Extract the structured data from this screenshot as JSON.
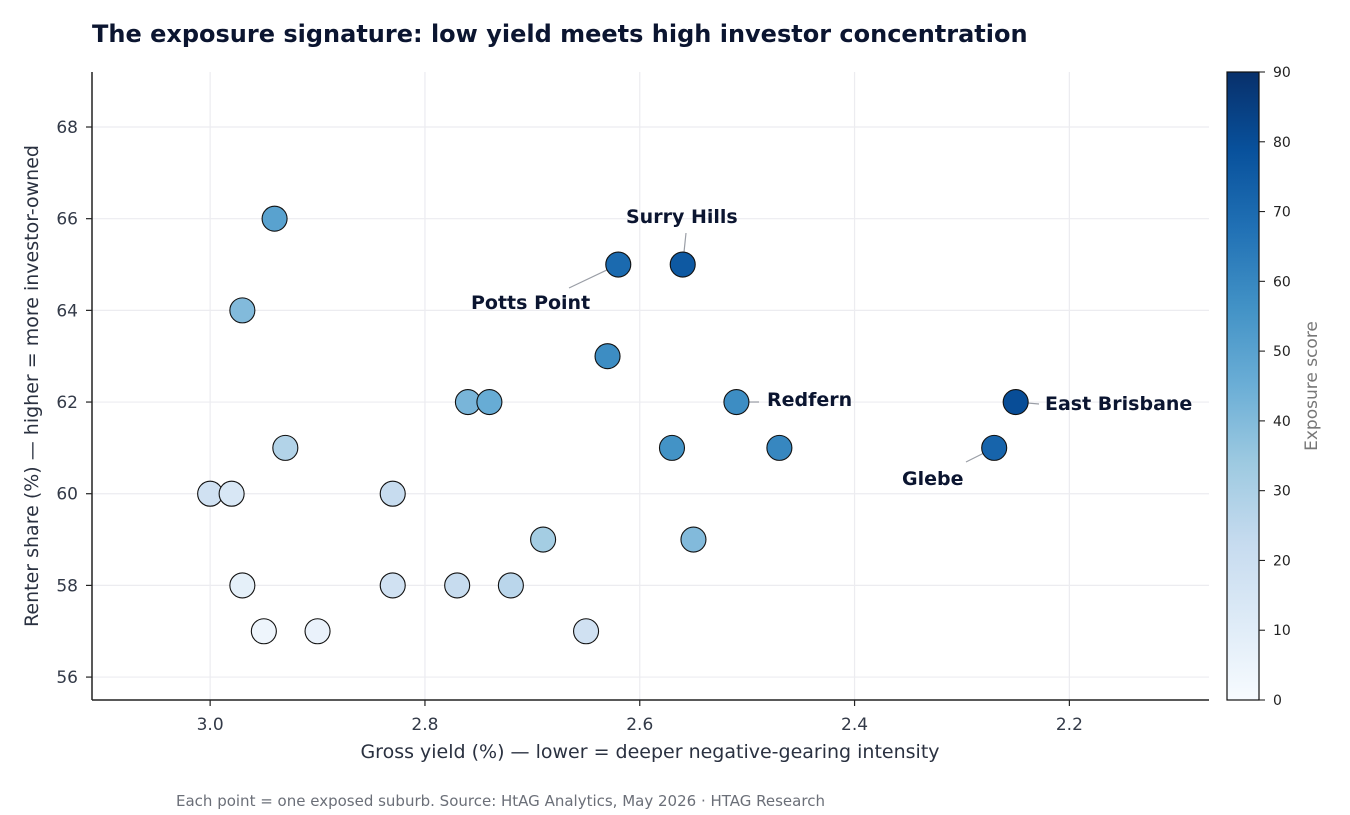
{
  "chart_data": {
    "type": "scatter",
    "title": "The exposure signature: low yield meets high investor concentration",
    "xlabel": "Gross yield (%)  —  lower = deeper negative-gearing intensity",
    "ylabel": "Renter share (%)  —  higher = more investor-owned",
    "footer": "Each point = one exposed suburb. Source: HtAG Analytics, May 2026  ·  HTAG Research",
    "x_reversed": true,
    "xlim": [
      3.11,
      2.07
    ],
    "ylim": [
      55.5,
      69.2
    ],
    "x_ticks": [
      3.0,
      2.8,
      2.6,
      2.4,
      2.2
    ],
    "x_tick_labels": [
      "3.0",
      "2.8",
      "2.6",
      "2.4",
      "2.2"
    ],
    "y_ticks": [
      56,
      58,
      60,
      62,
      64,
      66,
      68
    ],
    "y_tick_labels": [
      "56",
      "58",
      "60",
      "62",
      "64",
      "66",
      "68"
    ],
    "grid": true,
    "colorbar": {
      "label": "Exposure score",
      "range": [
        0,
        90
      ],
      "ticks": [
        0,
        10,
        20,
        30,
        40,
        50,
        60,
        70,
        80,
        90
      ],
      "tick_labels": [
        "0",
        "10",
        "20",
        "30",
        "40",
        "50",
        "60",
        "70",
        "80",
        "90"
      ],
      "colormap": "Blues",
      "colors": [
        "#f7fbff",
        "#deebf7",
        "#c6dbef",
        "#9ecae1",
        "#6baed6",
        "#4292c6",
        "#2171b5",
        "#08519c",
        "#08306b"
      ]
    },
    "points": [
      {
        "x": 2.94,
        "y": 66,
        "score": 50
      },
      {
        "x": 2.97,
        "y": 64,
        "score": 40
      },
      {
        "x": 2.93,
        "y": 61,
        "score": 28
      },
      {
        "x": 3.0,
        "y": 60,
        "score": 18
      },
      {
        "x": 2.98,
        "y": 60,
        "score": 14
      },
      {
        "x": 2.97,
        "y": 58,
        "score": 8
      },
      {
        "x": 2.95,
        "y": 57,
        "score": 4
      },
      {
        "x": 2.9,
        "y": 57,
        "score": 6
      },
      {
        "x": 2.83,
        "y": 60,
        "score": 22
      },
      {
        "x": 2.83,
        "y": 58,
        "score": 18
      },
      {
        "x": 2.77,
        "y": 58,
        "score": 22
      },
      {
        "x": 2.76,
        "y": 62,
        "score": 42
      },
      {
        "x": 2.74,
        "y": 62,
        "score": 46
      },
      {
        "x": 2.72,
        "y": 58,
        "score": 26
      },
      {
        "x": 2.69,
        "y": 59,
        "score": 32
      },
      {
        "x": 2.65,
        "y": 57,
        "score": 18
      },
      {
        "x": 2.63,
        "y": 63,
        "score": 58
      },
      {
        "x": 2.62,
        "y": 65,
        "score": 70
      },
      {
        "x": 2.56,
        "y": 65,
        "score": 76
      },
      {
        "x": 2.57,
        "y": 61,
        "score": 56
      },
      {
        "x": 2.55,
        "y": 59,
        "score": 40
      },
      {
        "x": 2.51,
        "y": 62,
        "score": 58
      },
      {
        "x": 2.47,
        "y": 61,
        "score": 60
      },
      {
        "x": 2.27,
        "y": 61,
        "score": 72
      },
      {
        "x": 2.25,
        "y": 62,
        "score": 80
      }
    ],
    "annotations": [
      {
        "text": "Surry Hills",
        "x": 2.56,
        "y": 65
      },
      {
        "text": "Potts Point",
        "x": 2.62,
        "y": 65
      },
      {
        "text": "Redfern",
        "x": 2.51,
        "y": 62
      },
      {
        "text": "East Brisbane",
        "x": 2.25,
        "y": 62
      },
      {
        "text": "Glebe",
        "x": 2.27,
        "y": 61
      }
    ]
  }
}
